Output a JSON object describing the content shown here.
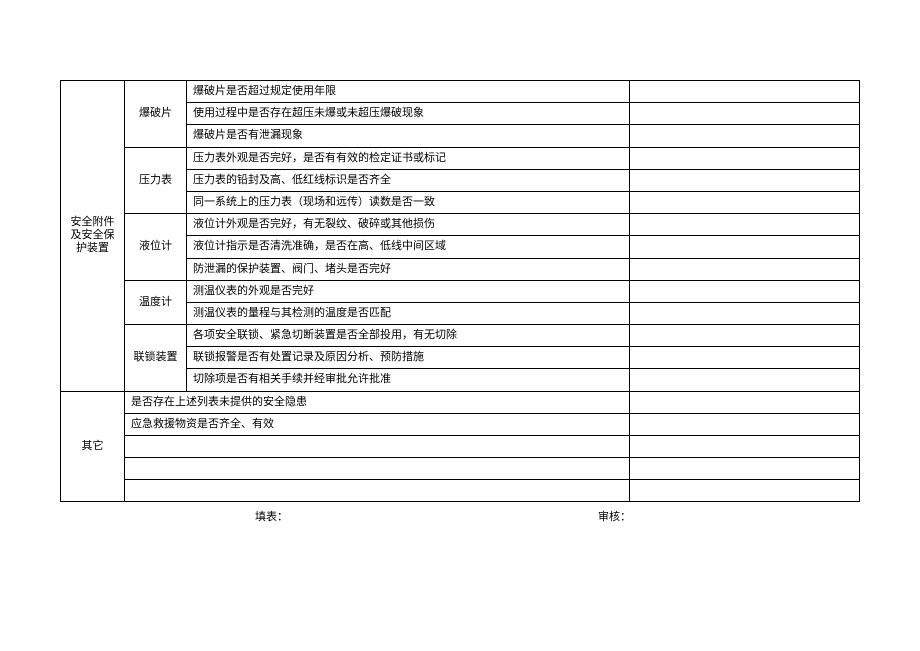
{
  "table": {
    "category1": "安全附件及安全保护装置",
    "category2": "其它",
    "groups": {
      "g1": {
        "name": "爆破片",
        "items": [
          "爆破片是否超过规定使用年限",
          "使用过程中是否存在超压未爆或未超压爆破现象",
          "爆破片是否有泄漏现象"
        ]
      },
      "g2": {
        "name": "压力表",
        "items": [
          "压力表外观是否完好，是否有有效的检定证书或标记",
          "压力表的铅封及高、低红线标识是否齐全",
          "同一系统上的压力表（现场和远传）读数是否一致"
        ]
      },
      "g3": {
        "name": "液位计",
        "items": [
          "液位计外观是否完好，有无裂纹、破碎或其他损伤",
          "液位计指示是否清洗准确，是否在高、低线中间区域",
          "防泄漏的保护装置、阀门、堵头是否完好"
        ]
      },
      "g4": {
        "name": "温度计",
        "items": [
          "测温仪表的外观是否完好",
          "测温仪表的量程与其检测的温度是否匹配"
        ]
      },
      "g5": {
        "name": "联锁装置",
        "items": [
          "各项安全联锁、紧急切断装置是否全部投用，有无切除",
          "联锁报警是否有处置记录及原因分析、预防措施",
          "切除项是否有相关手续并经审批允许批准"
        ]
      }
    },
    "other_items": [
      "是否存在上述列表未提供的安全隐患",
      "应急救援物资是否齐全、有效",
      "",
      "",
      ""
    ]
  },
  "footer": {
    "fill_label": "填表：",
    "review_label": "审核："
  },
  "style": {
    "border_color": "#000000",
    "text_color": "#000000",
    "background_color": "#ffffff",
    "font_size": 11
  }
}
